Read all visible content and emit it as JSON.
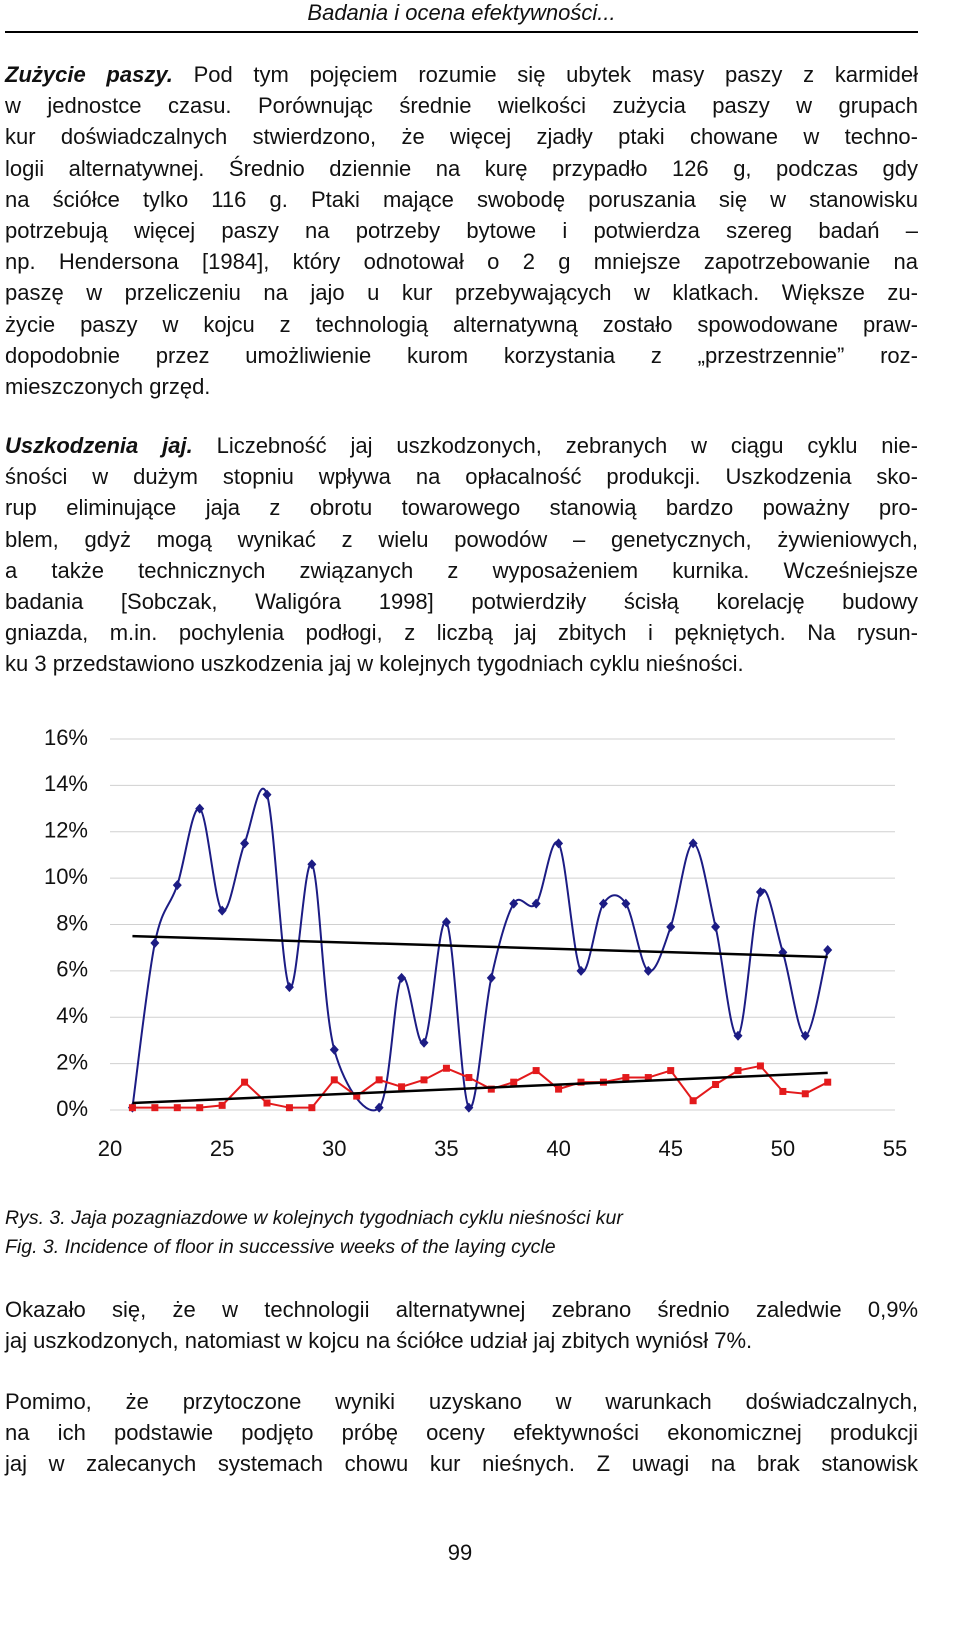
{
  "header": "Badania i ocena efektywności...",
  "paragraphs": [
    {
      "lead": "Zużycie paszy.",
      "lines": [
        "Pod tym pojęciem rozumie się ubytek masy paszy z karmideł",
        "w jednostce czasu. Porównując średnie wielkości zużycia paszy w grupach",
        "kur doświadczalnych stwierdzono, że więcej zjadły ptaki chowane w techno-",
        "logii alternatywnej. Średnio dziennie na kurę przypadło 126 g, podczas gdy",
        "na ściółce tylko 116 g. Ptaki mające swobodę poruszania się w stanowisku",
        "potrzebują więcej paszy na potrzeby bytowe i potwierdza szereg badań –",
        "np. Hendersona [1984], który odnotował o 2 g mniejsze zapotrzebowanie na",
        "paszę w przeliczeniu na jajo u kur przebywających w klatkach. Większe zu-",
        "życie paszy w kojcu z technologią alternatywną zostało spowodowane praw-",
        "dopodobnie przez umożliwienie kurom korzystania z „przestrzennie” roz-",
        "mieszczonych grzęd."
      ]
    },
    {
      "lead": "Uszkodzenia jaj.",
      "lines": [
        "Liczebność jaj uszkodzonych, zebranych w ciągu cyklu nie-",
        "śności w dużym stopniu wpływa na opłacalność produkcji. Uszkodzenia sko-",
        "rup eliminujące jaja z obrotu towarowego stanowią bardzo poważny pro-",
        "blem, gdyż mogą wynikać z wielu powodów – genetycznych, żywieniowych,",
        "a także technicznych związanych z wyposażeniem kurnika. Wcześniejsze",
        "badania [Sobczak, Waligóra 1998] potwierdziły ścisłą korelację budowy",
        "gniazda, m.in. pochylenia podłogi, z liczbą jaj zbitych i pękniętych. Na rysun-",
        "ku 3 przedstawiono uszkodzenia jaj w kolejnych tygodniach cyklu nieśności."
      ]
    },
    {
      "lines": [
        "Okazało się, że w technologii alternatywnej zebrano średnio zaledwie 0,9%",
        "jaj uszkodzonych, natomiast w kojcu na ściółce udział jaj zbitych wyniósł 7%."
      ]
    },
    {
      "lines": [
        "Pomimo, że przytoczone wyniki uzyskano w warunkach doświadczalnych,",
        "na ich podstawie podjęto próbę oceny efektywności ekonomicznej produkcji",
        "jaj w zalecanych systemach chowu kur nieśnych. Z uwagi na brak stanowisk"
      ]
    }
  ],
  "chart_data": {
    "type": "line",
    "xlim": [
      20,
      55
    ],
    "xticks": [
      20,
      25,
      30,
      35,
      40,
      45,
      50,
      55
    ],
    "ylim": [
      0,
      16
    ],
    "yticks": [
      {
        "value": 0,
        "label": "0%"
      },
      {
        "value": 2,
        "label": "2%"
      },
      {
        "value": 4,
        "label": "4%"
      },
      {
        "value": 6,
        "label": "6%"
      },
      {
        "value": 8,
        "label": "8%"
      },
      {
        "value": 10,
        "label": "10%"
      },
      {
        "value": 12,
        "label": "12%"
      },
      {
        "value": 14,
        "label": "14%"
      },
      {
        "value": 16,
        "label": "16%"
      }
    ],
    "grid": true,
    "series": [
      {
        "color": "#1c1c84",
        "marker": "diamond",
        "smooth": true,
        "x": [
          21,
          22,
          23,
          24,
          25,
          26,
          27,
          28,
          29,
          30,
          32,
          33,
          34,
          35,
          36,
          37,
          38,
          39,
          40,
          41,
          42,
          43,
          44,
          45,
          46,
          47,
          48,
          49,
          50,
          51,
          52
        ],
        "values": [
          0.1,
          7.2,
          9.7,
          13.0,
          8.6,
          11.5,
          13.6,
          5.3,
          10.6,
          2.6,
          0.1,
          5.7,
          2.9,
          8.1,
          0.1,
          5.7,
          8.9,
          8.9,
          11.5,
          6.0,
          8.9,
          8.9,
          6.0,
          7.9,
          11.5,
          7.9,
          3.2,
          9.4,
          6.8,
          3.2,
          6.9
        ]
      },
      {
        "color": "#e31a1c",
        "marker": "square",
        "smooth": false,
        "x": [
          21,
          22,
          23,
          24,
          25,
          26,
          27,
          28,
          29,
          30,
          31,
          32,
          33,
          34,
          35,
          36,
          37,
          38,
          39,
          40,
          41,
          42,
          43,
          44,
          45,
          46,
          47,
          48,
          49,
          50,
          51,
          52
        ],
        "values": [
          0.1,
          0.1,
          0.1,
          0.1,
          0.2,
          1.2,
          0.3,
          0.1,
          0.1,
          1.3,
          0.6,
          1.3,
          1.0,
          1.3,
          1.8,
          1.4,
          0.9,
          1.2,
          1.7,
          0.9,
          1.2,
          1.2,
          1.4,
          1.4,
          1.7,
          0.4,
          1.1,
          1.7,
          1.9,
          0.8,
          0.7,
          1.2
        ]
      }
    ],
    "trendlines": [
      {
        "color": "#000000",
        "x": [
          21,
          52
        ],
        "values": [
          7.5,
          6.6
        ]
      },
      {
        "color": "#000000",
        "x": [
          21,
          52
        ],
        "values": [
          0.3,
          1.6
        ]
      }
    ]
  },
  "captions": [
    "Rys. 3. Jaja pozagniazdowe w kolejnych tygodniach cyklu nieśności kur",
    "Fig. 3. Incidence of floor in successive weeks of the laying cycle"
  ],
  "page_number": "99"
}
